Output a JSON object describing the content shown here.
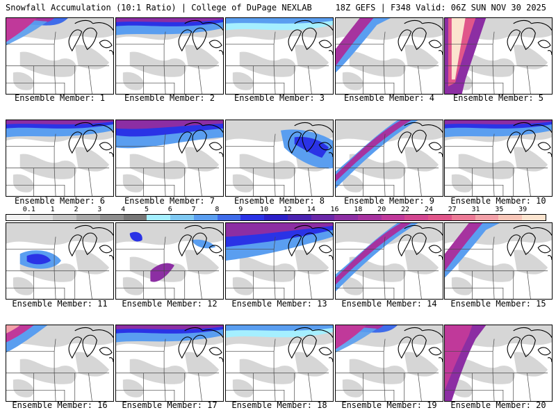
{
  "header": {
    "left": "Snowfall Accumulation (10:1 Ratio) | College of DuPage NEXLAB",
    "right": "18Z GEFS | F348 Valid: 06Z SUN NOV 30 2025"
  },
  "colorbar": {
    "labels": [
      "0.1",
      "1",
      "2",
      "3",
      "4",
      "5",
      "6",
      "7",
      "8",
      "9",
      "10",
      "12",
      "14",
      "16",
      "18",
      "20",
      "22",
      "24",
      "27",
      "31",
      "35",
      "39"
    ],
    "colors": [
      "#f2f2f2",
      "#dcdcdc",
      "#c4c4c4",
      "#a8a8a8",
      "#8e8e8e",
      "#777777",
      "#a5efff",
      "#7ec8f2",
      "#5a9ef0",
      "#3f6cea",
      "#2a33e6",
      "#2b1fc8",
      "#4a23b0",
      "#6a28a8",
      "#8c2ea3",
      "#a6339f",
      "#c0399a",
      "#d24690",
      "#e0568a",
      "#ec7a96",
      "#f2a0a8",
      "#f7c6b8",
      "#fbe4cf"
    ]
  },
  "members": [
    {
      "label": "Ensemble Member: 1",
      "snow": "heavy-nw"
    },
    {
      "label": "Ensemble Member: 2",
      "snow": "north-band"
    },
    {
      "label": "Ensemble Member: 3",
      "snow": "light-north"
    },
    {
      "label": "Ensemble Member: 4",
      "snow": "nw-band"
    },
    {
      "label": "Ensemble Member: 5",
      "snow": "extreme-plains"
    },
    {
      "label": "Ensemble Member: 6",
      "snow": "north-band"
    },
    {
      "label": "Ensemble Member: 7",
      "snow": "north-heavy"
    },
    {
      "label": "Ensemble Member: 8",
      "snow": "lakes"
    },
    {
      "label": "Ensemble Member: 9",
      "snow": "diagonal"
    },
    {
      "label": "Ensemble Member: 10",
      "snow": "north-band"
    },
    {
      "label": "Ensemble Member: 11",
      "snow": "central"
    },
    {
      "label": "Ensemble Member: 12",
      "snow": "scattered"
    },
    {
      "label": "Ensemble Member: 13",
      "snow": "heavy-north"
    },
    {
      "label": "Ensemble Member: 14",
      "snow": "diagonal"
    },
    {
      "label": "Ensemble Member: 15",
      "snow": "nw-band"
    },
    {
      "label": "Ensemble Member: 16",
      "snow": "nw-corner"
    },
    {
      "label": "Ensemble Member: 17",
      "snow": "north-band"
    },
    {
      "label": "Ensemble Member: 18",
      "snow": "light-north"
    },
    {
      "label": "Ensemble Member: 19",
      "snow": "heavy-nw"
    },
    {
      "label": "Ensemble Member: 20",
      "snow": "plains-band"
    }
  ]
}
